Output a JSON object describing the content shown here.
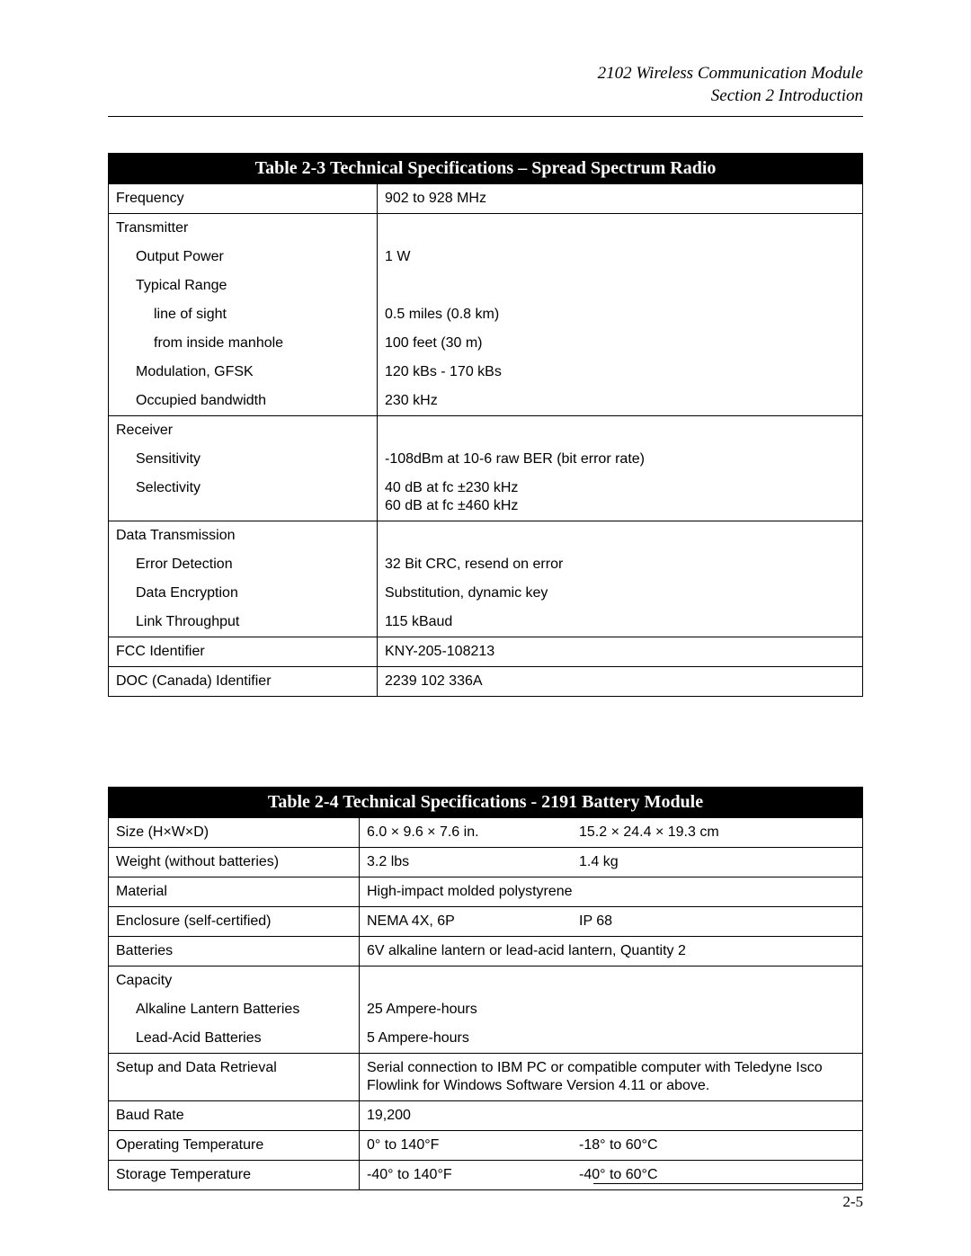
{
  "header": {
    "line1": "2102 Wireless Communication Module",
    "line2": "Section 2   Introduction"
  },
  "table1": {
    "caption": "Table 2-3  Technical Specifications – Spread Spectrum Radio",
    "rows": [
      {
        "label": "Frequency",
        "indent": 0,
        "value": "902 to 928 MHz",
        "rule": true
      },
      {
        "label": "Transmitter",
        "indent": 0,
        "value": "",
        "rule": false
      },
      {
        "label": "Output Power",
        "indent": 1,
        "value": "1 W",
        "rule": false
      },
      {
        "label": "Typical Range",
        "indent": 1,
        "value": "",
        "rule": false
      },
      {
        "label": "line of sight",
        "indent": 2,
        "value": "0.5 miles (0.8 km)",
        "rule": false
      },
      {
        "label": "from inside manhole",
        "indent": 2,
        "value": "100 feet (30 m)",
        "rule": false
      },
      {
        "label": "Modulation, GFSK",
        "indent": 1,
        "value": "120 kBs - 170 kBs",
        "rule": false
      },
      {
        "label": "Occupied bandwidth",
        "indent": 1,
        "value": "230 kHz",
        "rule": true
      },
      {
        "label": "Receiver",
        "indent": 0,
        "value": "",
        "rule": false
      },
      {
        "label": "Sensitivity",
        "indent": 1,
        "value": "-108dBm at 10-6 raw BER (bit error rate)",
        "rule": false
      },
      {
        "label": "Selectivity",
        "indent": 1,
        "value": "40 dB at fc ±230 kHz\n60 dB at fc ±460 kHz",
        "rule": true
      },
      {
        "label": "Data Transmission",
        "indent": 0,
        "value": "",
        "rule": false
      },
      {
        "label": "Error Detection",
        "indent": 1,
        "value": "32 Bit CRC, resend on error",
        "rule": false
      },
      {
        "label": "Data Encryption",
        "indent": 1,
        "value": "Substitution, dynamic key",
        "rule": false
      },
      {
        "label": "Link Throughput",
        "indent": 1,
        "value": "115 kBaud",
        "rule": true
      },
      {
        "label": "FCC Identifier",
        "indent": 0,
        "value": "KNY-205-108213",
        "rule": true
      },
      {
        "label": "DOC (Canada) Identifier",
        "indent": 0,
        "value": "2239 102 336A",
        "rule": true
      }
    ]
  },
  "table2": {
    "caption": "Table 2-4  Technical Specifications - 2191 Battery Module",
    "rows": [
      {
        "label": "Size (H×W×D)",
        "indent": 0,
        "v1": "6.0 × 9.6 × 7.6 in.",
        "v2": "15.2 × 24.4 × 19.3 cm",
        "rule": true
      },
      {
        "label": "Weight (without batteries)",
        "indent": 0,
        "v1": "3.2 lbs",
        "v2": "1.4 kg",
        "rule": true
      },
      {
        "label": "Material",
        "indent": 0,
        "wide": "High-impact molded polystyrene",
        "rule": true
      },
      {
        "label": "Enclosure (self-certified)",
        "indent": 0,
        "v1": "NEMA 4X, 6P",
        "v2": "IP 68",
        "rule": true
      },
      {
        "label": "Batteries",
        "indent": 0,
        "wide": "6V alkaline lantern or lead-acid lantern, Quantity 2",
        "rule": true
      },
      {
        "label": "Capacity",
        "indent": 0,
        "wide": "",
        "rule": false
      },
      {
        "label": "Alkaline Lantern Batteries",
        "indent": 1,
        "wide": "25 Ampere-hours",
        "rule": false
      },
      {
        "label": "Lead-Acid Batteries",
        "indent": 1,
        "wide": "5 Ampere-hours",
        "rule": true
      },
      {
        "label": "Setup and Data Retrieval",
        "indent": 0,
        "wide": "Serial connection to IBM PC or compatible computer with Teledyne Isco Flowlink for Windows Software Version 4.11 or above.",
        "rule": true
      },
      {
        "label": "Baud Rate",
        "indent": 0,
        "wide": "19,200",
        "rule": true
      },
      {
        "label": "Operating Temperature",
        "indent": 0,
        "v1": "0° to 140°F",
        "v2": "-18° to 60°C",
        "rule": true
      },
      {
        "label": "Storage Temperature",
        "indent": 0,
        "v1": "-40° to 140°F",
        "v2": "-40° to 60°C",
        "rule": true
      }
    ]
  },
  "pageNumber": "2-5"
}
